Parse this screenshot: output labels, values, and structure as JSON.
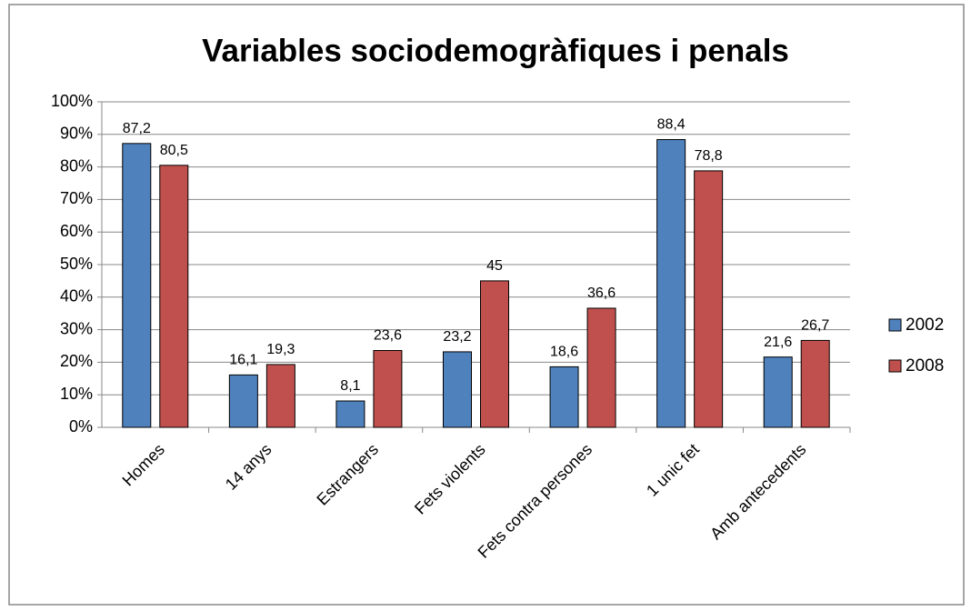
{
  "chart_data": {
    "type": "bar",
    "title": "Variables sociodemogràfiques i penals",
    "categories": [
      "Homes",
      "14 anys",
      "Estrangers",
      "Fets violents",
      "Fets contra persones",
      "1 unic fet",
      "Amb antecedents"
    ],
    "series": [
      {
        "name": "2002",
        "color": "#4f81bd",
        "values": [
          87.2,
          16.1,
          8.1,
          23.2,
          18.6,
          88.4,
          21.6
        ],
        "value_labels": [
          "87,2",
          "16,1",
          "8,1",
          "23,2",
          "18,6",
          "88,4",
          "21,6"
        ]
      },
      {
        "name": "2008",
        "color": "#c0504d",
        "values": [
          80.5,
          19.3,
          23.6,
          45,
          36.6,
          78.8,
          26.7
        ],
        "value_labels": [
          "80,5",
          "19,3",
          "23,6",
          "45",
          "36,6",
          "78,8",
          "26,7"
        ]
      }
    ],
    "ylim": [
      0,
      100
    ],
    "yticks": [
      {
        "value": 0,
        "label": "0%"
      },
      {
        "value": 10,
        "label": "10%"
      },
      {
        "value": 20,
        "label": "20%"
      },
      {
        "value": 30,
        "label": "30%"
      },
      {
        "value": 40,
        "label": "40%"
      },
      {
        "value": 50,
        "label": "50%"
      },
      {
        "value": 60,
        "label": "60%"
      },
      {
        "value": 70,
        "label": "70%"
      },
      {
        "value": 80,
        "label": "80%"
      },
      {
        "value": 90,
        "label": "90%"
      },
      {
        "value": 100,
        "label": "100%"
      }
    ],
    "grid": true,
    "legend": "right"
  }
}
